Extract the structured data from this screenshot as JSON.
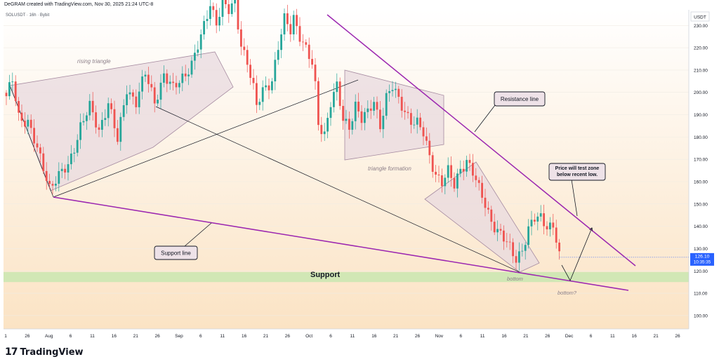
{
  "header": {
    "credit": "DeGRAM created with TradingView.com, Nov 30, 2025 21:24 UTC-8"
  },
  "brand": {
    "mark": "17",
    "name": "TradingView"
  },
  "chart_data": {
    "type": "candlestick",
    "symbol_label": "SOLUSDT · 16h · Bybit",
    "currency": "USDT",
    "ylim": [
      94,
      237
    ],
    "y_ticks": [
      100,
      110,
      120,
      130,
      140,
      150,
      160,
      170,
      180,
      190,
      200,
      210,
      220,
      230
    ],
    "y_tick_labels": [
      "100.00",
      "110.00",
      "120.00",
      "130.00",
      "140.00",
      "150.00",
      "160.00",
      "170.00",
      "180.00",
      "190.00",
      "200.00",
      "210.00",
      "220.00",
      "230.00"
    ],
    "x_ticks": [
      "1",
      "26",
      "Aug",
      "6",
      "11",
      "16",
      "21",
      "26",
      "Sep",
      "6",
      "11",
      "16",
      "21",
      "26",
      "Oct",
      "6",
      "11",
      "16",
      "21",
      "26",
      "Nov",
      "6",
      "11",
      "16",
      "21",
      "26",
      "Dec",
      "6",
      "11",
      "16",
      "21",
      "26"
    ],
    "last_price": {
      "value": 126.1,
      "label": "126.10",
      "countdown": "10:35:35",
      "color": "#2962ff"
    },
    "colors": {
      "up": "#26a69a",
      "down": "#ef5350",
      "trendline": "#9c27b0",
      "support_zone": "#c9e6b0",
      "pattern_fill": "#e8dadf"
    },
    "price_anchors": [
      [
        0,
        197
      ],
      [
        2,
        206
      ],
      [
        4,
        190
      ],
      [
        7,
        186
      ],
      [
        10,
        174
      ],
      [
        12,
        167
      ],
      [
        14,
        158
      ],
      [
        17,
        162
      ],
      [
        20,
        167
      ],
      [
        24,
        185
      ],
      [
        27,
        193
      ],
      [
        30,
        183
      ],
      [
        33,
        196
      ],
      [
        36,
        178
      ],
      [
        39,
        202
      ],
      [
        42,
        196
      ],
      [
        45,
        208
      ],
      [
        48,
        196
      ],
      [
        51,
        208
      ],
      [
        54,
        201
      ],
      [
        57,
        207
      ],
      [
        60,
        213
      ],
      [
        63,
        224
      ],
      [
        66,
        240
      ],
      [
        68,
        232
      ],
      [
        70,
        240
      ],
      [
        72,
        236
      ],
      [
        74,
        240
      ],
      [
        76,
        222
      ],
      [
        78,
        214
      ],
      [
        80,
        201
      ],
      [
        81,
        193
      ],
      [
        83,
        201
      ],
      [
        86,
        206
      ],
      [
        88,
        220
      ],
      [
        90,
        232
      ],
      [
        92,
        228
      ],
      [
        93,
        234
      ],
      [
        95,
        226
      ],
      [
        97,
        219
      ],
      [
        99,
        212
      ],
      [
        100,
        202
      ],
      [
        101,
        186
      ],
      [
        103,
        182
      ],
      [
        105,
        196
      ],
      [
        107,
        202
      ],
      [
        109,
        187
      ],
      [
        111,
        185
      ],
      [
        113,
        195
      ],
      [
        115,
        188
      ],
      [
        117,
        190
      ],
      [
        119,
        196
      ],
      [
        121,
        186
      ],
      [
        123,
        198
      ],
      [
        125,
        202
      ],
      [
        127,
        196
      ],
      [
        129,
        192
      ],
      [
        131,
        188
      ],
      [
        133,
        186
      ],
      [
        135,
        181
      ],
      [
        137,
        171
      ],
      [
        139,
        164
      ],
      [
        141,
        160
      ],
      [
        143,
        164
      ],
      [
        145,
        158
      ],
      [
        147,
        166
      ],
      [
        149,
        170
      ],
      [
        151,
        164
      ],
      [
        153,
        156
      ],
      [
        155,
        150
      ],
      [
        157,
        143
      ],
      [
        159,
        138
      ],
      [
        161,
        134
      ],
      [
        163,
        130
      ],
      [
        165,
        126
      ],
      [
        167,
        130
      ],
      [
        169,
        138
      ],
      [
        171,
        143
      ],
      [
        173,
        144
      ],
      [
        175,
        141
      ],
      [
        177,
        140
      ],
      [
        178,
        134
      ],
      [
        179,
        126
      ]
    ],
    "annotations": {
      "rising_triangle": "rising triangle",
      "triangle_formation": "triangle formation",
      "bottom_1": "bottom",
      "bottom_2": "bottom?",
      "support": "Support",
      "support_line": "Support line",
      "resistance_line": "Resistance line",
      "forecast_note": "Price will test zone below recent low."
    }
  }
}
